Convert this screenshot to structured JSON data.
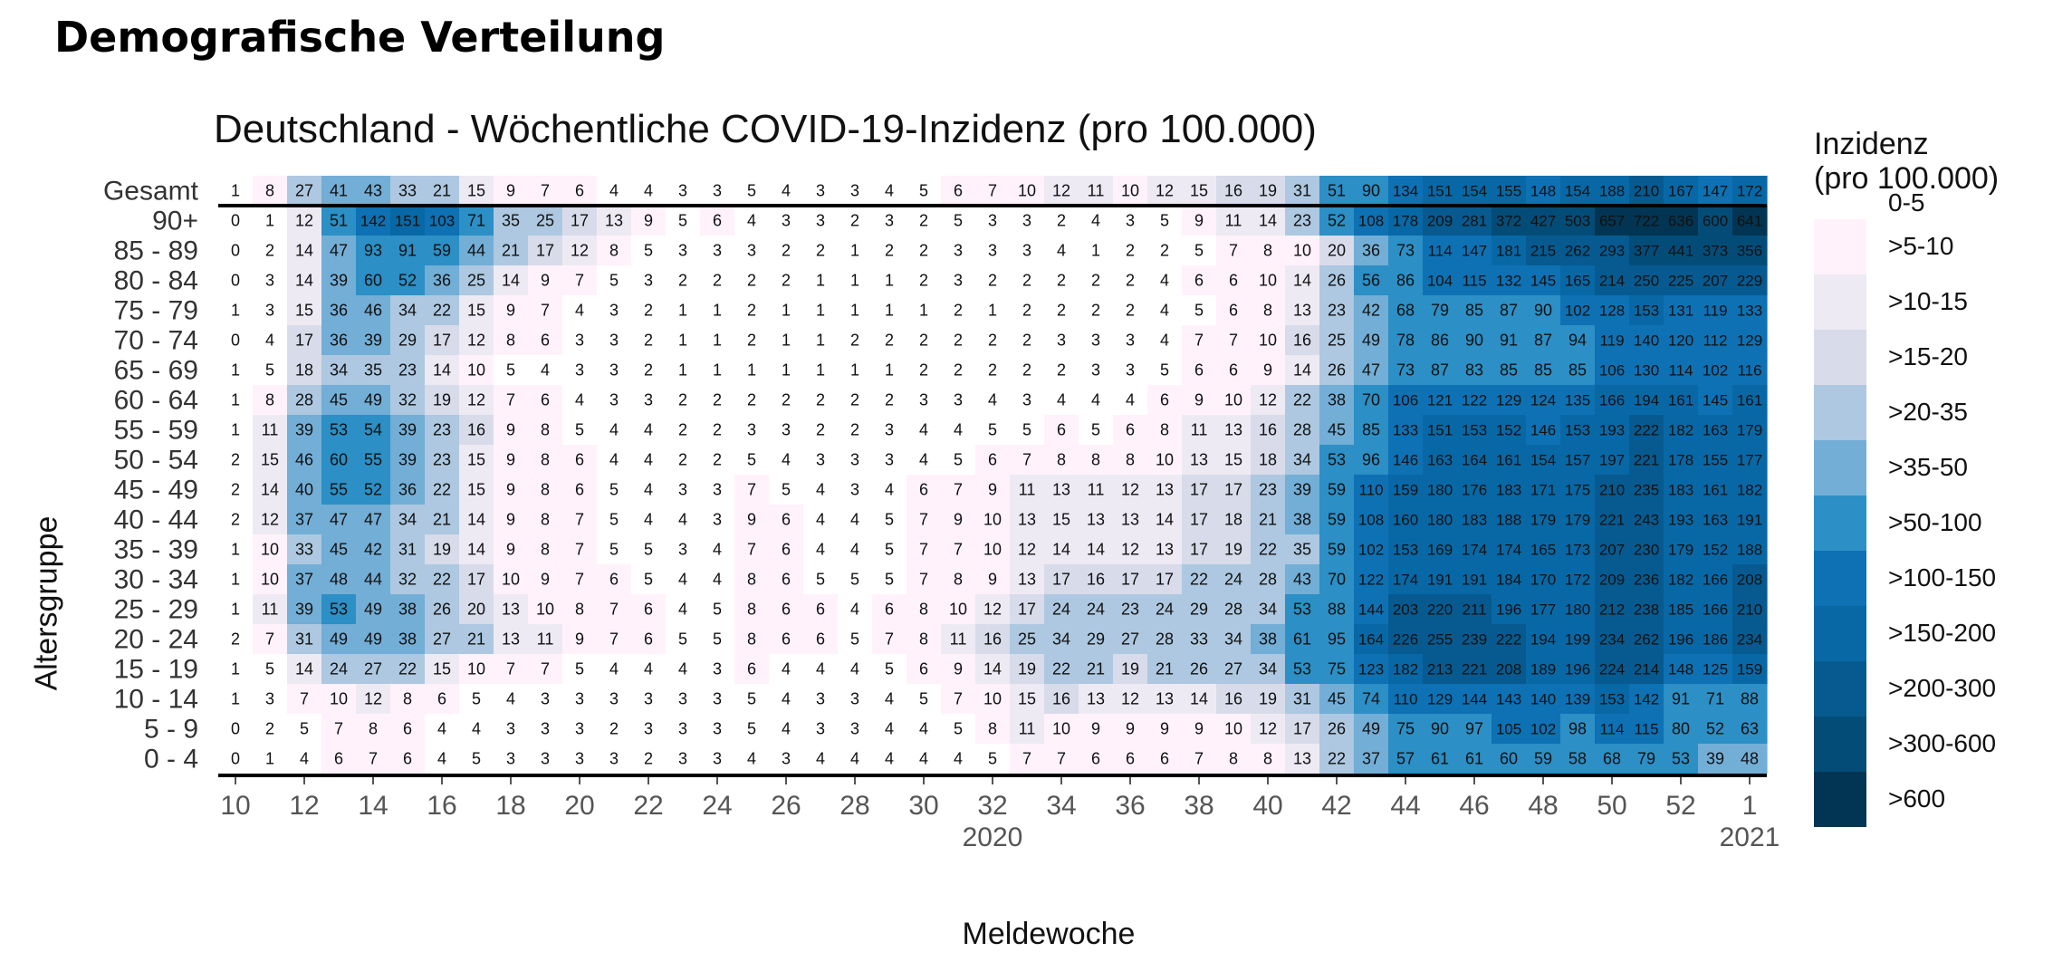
{
  "page": {
    "title": "Demografische Verteilung"
  },
  "colors": {
    "scale": [
      "#ffffff",
      "#fff2fb",
      "#eeeaf4",
      "#d8dbea",
      "#adc8e0",
      "#73aed6",
      "#2c8fc5",
      "#0e71b4",
      "#0868a6",
      "#065a90",
      "#044c78",
      "#023553"
    ],
    "text_light": "#000000"
  },
  "chart_data": {
    "type": "heatmap",
    "title": "Deutschland - Wöchentliche COVID-19-Inzidenz (pro 100.000)",
    "xlabel": "Meldewoche",
    "ylabel": "Altersgruppe",
    "x_weeks": [
      10,
      11,
      12,
      13,
      14,
      15,
      16,
      17,
      18,
      19,
      20,
      21,
      22,
      23,
      24,
      25,
      26,
      27,
      28,
      29,
      30,
      31,
      32,
      33,
      34,
      35,
      36,
      37,
      38,
      39,
      40,
      41,
      42,
      43,
      44,
      45,
      46,
      47,
      48,
      49,
      50,
      51,
      52,
      53,
      1
    ],
    "x_tick_labels": [
      "10",
      "12",
      "14",
      "16",
      "18",
      "20",
      "22",
      "24",
      "26",
      "28",
      "30",
      "32",
      "34",
      "36",
      "38",
      "40",
      "42",
      "44",
      "46",
      "48",
      "50",
      "52",
      "1"
    ],
    "x_year_labels": [
      {
        "after_week": "32",
        "label": "2020"
      },
      {
        "after_week": "1",
        "label": "2021"
      }
    ],
    "rows": [
      "Gesamt",
      "90+",
      "85 - 89",
      "80 - 84",
      "75 - 79",
      "70 - 74",
      "65 - 69",
      "60 - 64",
      "55 - 59",
      "50 - 54",
      "45 - 49",
      "40 - 44",
      "35 - 39",
      "30 - 34",
      "25 - 29",
      "20 - 24",
      "15 - 19",
      "10 - 14",
      "5 - 9",
      "0 - 4"
    ],
    "values": [
      [
        1,
        8,
        27,
        41,
        43,
        33,
        21,
        15,
        9,
        7,
        6,
        4,
        4,
        3,
        3,
        5,
        4,
        3,
        3,
        4,
        5,
        6,
        7,
        10,
        12,
        11,
        10,
        12,
        15,
        16,
        19,
        31,
        51,
        90,
        134,
        151,
        154,
        155,
        148,
        154,
        188,
        210,
        167,
        147,
        172
      ],
      [
        0,
        1,
        12,
        51,
        142,
        151,
        103,
        71,
        35,
        25,
        17,
        13,
        9,
        5,
        6,
        4,
        3,
        3,
        2,
        3,
        2,
        5,
        3,
        3,
        2,
        4,
        3,
        5,
        9,
        11,
        14,
        23,
        52,
        108,
        178,
        209,
        281,
        372,
        427,
        503,
        657,
        722,
        636,
        600,
        641
      ],
      [
        0,
        2,
        14,
        47,
        93,
        91,
        59,
        44,
        21,
        17,
        12,
        8,
        5,
        3,
        3,
        3,
        2,
        2,
        1,
        2,
        2,
        3,
        3,
        3,
        4,
        1,
        2,
        2,
        5,
        7,
        8,
        10,
        20,
        36,
        73,
        114,
        147,
        181,
        215,
        262,
        293,
        377,
        441,
        373,
        356
      ],
      [
        0,
        3,
        14,
        39,
        60,
        52,
        36,
        25,
        14,
        9,
        7,
        5,
        3,
        2,
        2,
        2,
        2,
        1,
        1,
        1,
        2,
        3,
        2,
        2,
        2,
        2,
        2,
        4,
        6,
        6,
        10,
        14,
        26,
        56,
        86,
        104,
        115,
        132,
        145,
        165,
        214,
        250,
        225,
        207,
        229
      ],
      [
        1,
        3,
        15,
        36,
        46,
        34,
        22,
        15,
        9,
        7,
        4,
        3,
        2,
        1,
        1,
        2,
        1,
        1,
        1,
        1,
        1,
        2,
        1,
        2,
        2,
        2,
        2,
        4,
        5,
        6,
        8,
        13,
        23,
        42,
        68,
        79,
        85,
        87,
        90,
        102,
        128,
        153,
        131,
        119,
        133
      ],
      [
        0,
        4,
        17,
        36,
        39,
        29,
        17,
        12,
        8,
        6,
        3,
        3,
        2,
        1,
        1,
        2,
        1,
        1,
        2,
        2,
        2,
        2,
        2,
        2,
        3,
        3,
        3,
        4,
        7,
        7,
        10,
        16,
        25,
        49,
        78,
        86,
        90,
        91,
        87,
        94,
        119,
        140,
        120,
        112,
        129
      ],
      [
        1,
        5,
        18,
        34,
        35,
        23,
        14,
        10,
        5,
        4,
        3,
        3,
        2,
        1,
        1,
        1,
        1,
        1,
        1,
        1,
        2,
        2,
        2,
        2,
        2,
        3,
        3,
        5,
        6,
        6,
        9,
        14,
        26,
        47,
        73,
        87,
        83,
        85,
        85,
        85,
        106,
        130,
        114,
        102,
        116
      ],
      [
        1,
        8,
        28,
        45,
        49,
        32,
        19,
        12,
        7,
        6,
        4,
        3,
        3,
        2,
        2,
        2,
        2,
        2,
        2,
        2,
        3,
        3,
        4,
        3,
        4,
        4,
        4,
        6,
        9,
        10,
        12,
        22,
        38,
        70,
        106,
        121,
        122,
        129,
        124,
        135,
        166,
        194,
        161,
        145,
        161
      ],
      [
        1,
        11,
        39,
        53,
        54,
        39,
        23,
        16,
        9,
        8,
        5,
        4,
        4,
        2,
        2,
        3,
        3,
        2,
        2,
        3,
        4,
        4,
        5,
        5,
        6,
        5,
        6,
        8,
        11,
        13,
        16,
        28,
        45,
        85,
        133,
        151,
        153,
        152,
        146,
        153,
        193,
        222,
        182,
        163,
        179
      ],
      [
        2,
        15,
        46,
        60,
        55,
        39,
        23,
        15,
        9,
        8,
        6,
        4,
        4,
        2,
        2,
        5,
        4,
        3,
        3,
        3,
        4,
        5,
        6,
        7,
        8,
        8,
        8,
        10,
        13,
        15,
        18,
        34,
        53,
        96,
        146,
        163,
        164,
        161,
        154,
        157,
        197,
        221,
        178,
        155,
        177
      ],
      [
        2,
        14,
        40,
        55,
        52,
        36,
        22,
        15,
        9,
        8,
        6,
        5,
        4,
        3,
        3,
        7,
        5,
        4,
        3,
        4,
        6,
        7,
        9,
        11,
        13,
        11,
        12,
        13,
        17,
        17,
        23,
        39,
        59,
        110,
        159,
        180,
        176,
        183,
        171,
        175,
        210,
        235,
        183,
        161,
        182
      ],
      [
        2,
        12,
        37,
        47,
        47,
        34,
        21,
        14,
        9,
        8,
        7,
        5,
        4,
        4,
        3,
        9,
        6,
        4,
        4,
        5,
        7,
        9,
        10,
        13,
        15,
        13,
        13,
        14,
        17,
        18,
        21,
        38,
        59,
        108,
        160,
        180,
        183,
        188,
        179,
        179,
        221,
        243,
        193,
        163,
        191
      ],
      [
        1,
        10,
        33,
        45,
        42,
        31,
        19,
        14,
        9,
        8,
        7,
        5,
        5,
        3,
        4,
        7,
        6,
        4,
        4,
        5,
        7,
        7,
        10,
        12,
        14,
        14,
        12,
        13,
        17,
        19,
        22,
        35,
        59,
        102,
        153,
        169,
        174,
        174,
        165,
        173,
        207,
        230,
        179,
        152,
        188
      ],
      [
        1,
        10,
        37,
        48,
        44,
        32,
        22,
        17,
        10,
        9,
        7,
        6,
        5,
        4,
        4,
        8,
        6,
        5,
        5,
        5,
        7,
        8,
        9,
        13,
        17,
        16,
        17,
        17,
        22,
        24,
        28,
        43,
        70,
        122,
        174,
        191,
        191,
        184,
        170,
        172,
        209,
        236,
        182,
        166,
        208
      ],
      [
        1,
        11,
        39,
        53,
        49,
        38,
        26,
        20,
        13,
        10,
        8,
        7,
        6,
        4,
        5,
        8,
        6,
        6,
        4,
        6,
        8,
        10,
        12,
        17,
        24,
        24,
        23,
        24,
        29,
        28,
        34,
        53,
        88,
        144,
        203,
        220,
        211,
        196,
        177,
        180,
        212,
        238,
        185,
        166,
        210
      ],
      [
        2,
        7,
        31,
        49,
        49,
        38,
        27,
        21,
        13,
        11,
        9,
        7,
        6,
        5,
        5,
        8,
        6,
        6,
        5,
        7,
        8,
        11,
        16,
        25,
        34,
        29,
        27,
        28,
        33,
        34,
        38,
        61,
        95,
        164,
        226,
        255,
        239,
        222,
        194,
        199,
        234,
        262,
        196,
        186,
        234
      ],
      [
        1,
        5,
        14,
        24,
        27,
        22,
        15,
        10,
        7,
        7,
        5,
        4,
        4,
        4,
        3,
        6,
        4,
        4,
        4,
        5,
        6,
        9,
        14,
        19,
        22,
        21,
        19,
        21,
        26,
        27,
        34,
        53,
        75,
        123,
        182,
        213,
        221,
        208,
        189,
        196,
        224,
        214,
        148,
        125,
        159
      ],
      [
        1,
        3,
        7,
        10,
        12,
        8,
        6,
        5,
        4,
        3,
        3,
        3,
        3,
        3,
        3,
        5,
        4,
        3,
        3,
        4,
        5,
        7,
        10,
        15,
        16,
        13,
        12,
        13,
        14,
        16,
        19,
        31,
        45,
        74,
        110,
        129,
        144,
        143,
        140,
        139,
        153,
        142,
        91,
        71,
        88
      ],
      [
        0,
        2,
        5,
        7,
        8,
        6,
        4,
        4,
        3,
        3,
        3,
        2,
        3,
        3,
        3,
        5,
        4,
        3,
        3,
        4,
        4,
        5,
        8,
        11,
        10,
        9,
        9,
        9,
        9,
        10,
        12,
        17,
        26,
        49,
        75,
        90,
        97,
        105,
        102,
        98,
        114,
        115,
        80,
        52,
        63
      ],
      [
        0,
        1,
        4,
        6,
        7,
        6,
        4,
        5,
        3,
        3,
        3,
        3,
        2,
        3,
        3,
        4,
        3,
        4,
        4,
        4,
        4,
        4,
        5,
        7,
        7,
        6,
        6,
        6,
        7,
        8,
        8,
        13,
        22,
        37,
        57,
        61,
        61,
        60,
        59,
        58,
        68,
        79,
        53,
        39,
        48
      ]
    ],
    "legend": {
      "title_lines": [
        "Inzidenz",
        "(pro 100.000)"
      ],
      "bins": [
        {
          "label": "0-5",
          "color": "#ffffff"
        },
        {
          "label": ">5-10",
          "color": "#fff2fb"
        },
        {
          "label": ">10-15",
          "color": "#eeeaf4"
        },
        {
          "label": ">15-20",
          "color": "#d8dbea"
        },
        {
          "label": ">20-35",
          "color": "#adc8e0"
        },
        {
          "label": ">35-50",
          "color": "#73aed6"
        },
        {
          "label": ">50-100",
          "color": "#2c8fc5"
        },
        {
          "label": ">100-150",
          "color": "#0e71b4"
        },
        {
          "label": ">150-200",
          "color": "#0868a6"
        },
        {
          "label": ">200-300",
          "color": "#065a90"
        },
        {
          "label": ">300-600",
          "color": "#044c78"
        },
        {
          "label": ">600",
          "color": "#023553"
        }
      ]
    }
  }
}
